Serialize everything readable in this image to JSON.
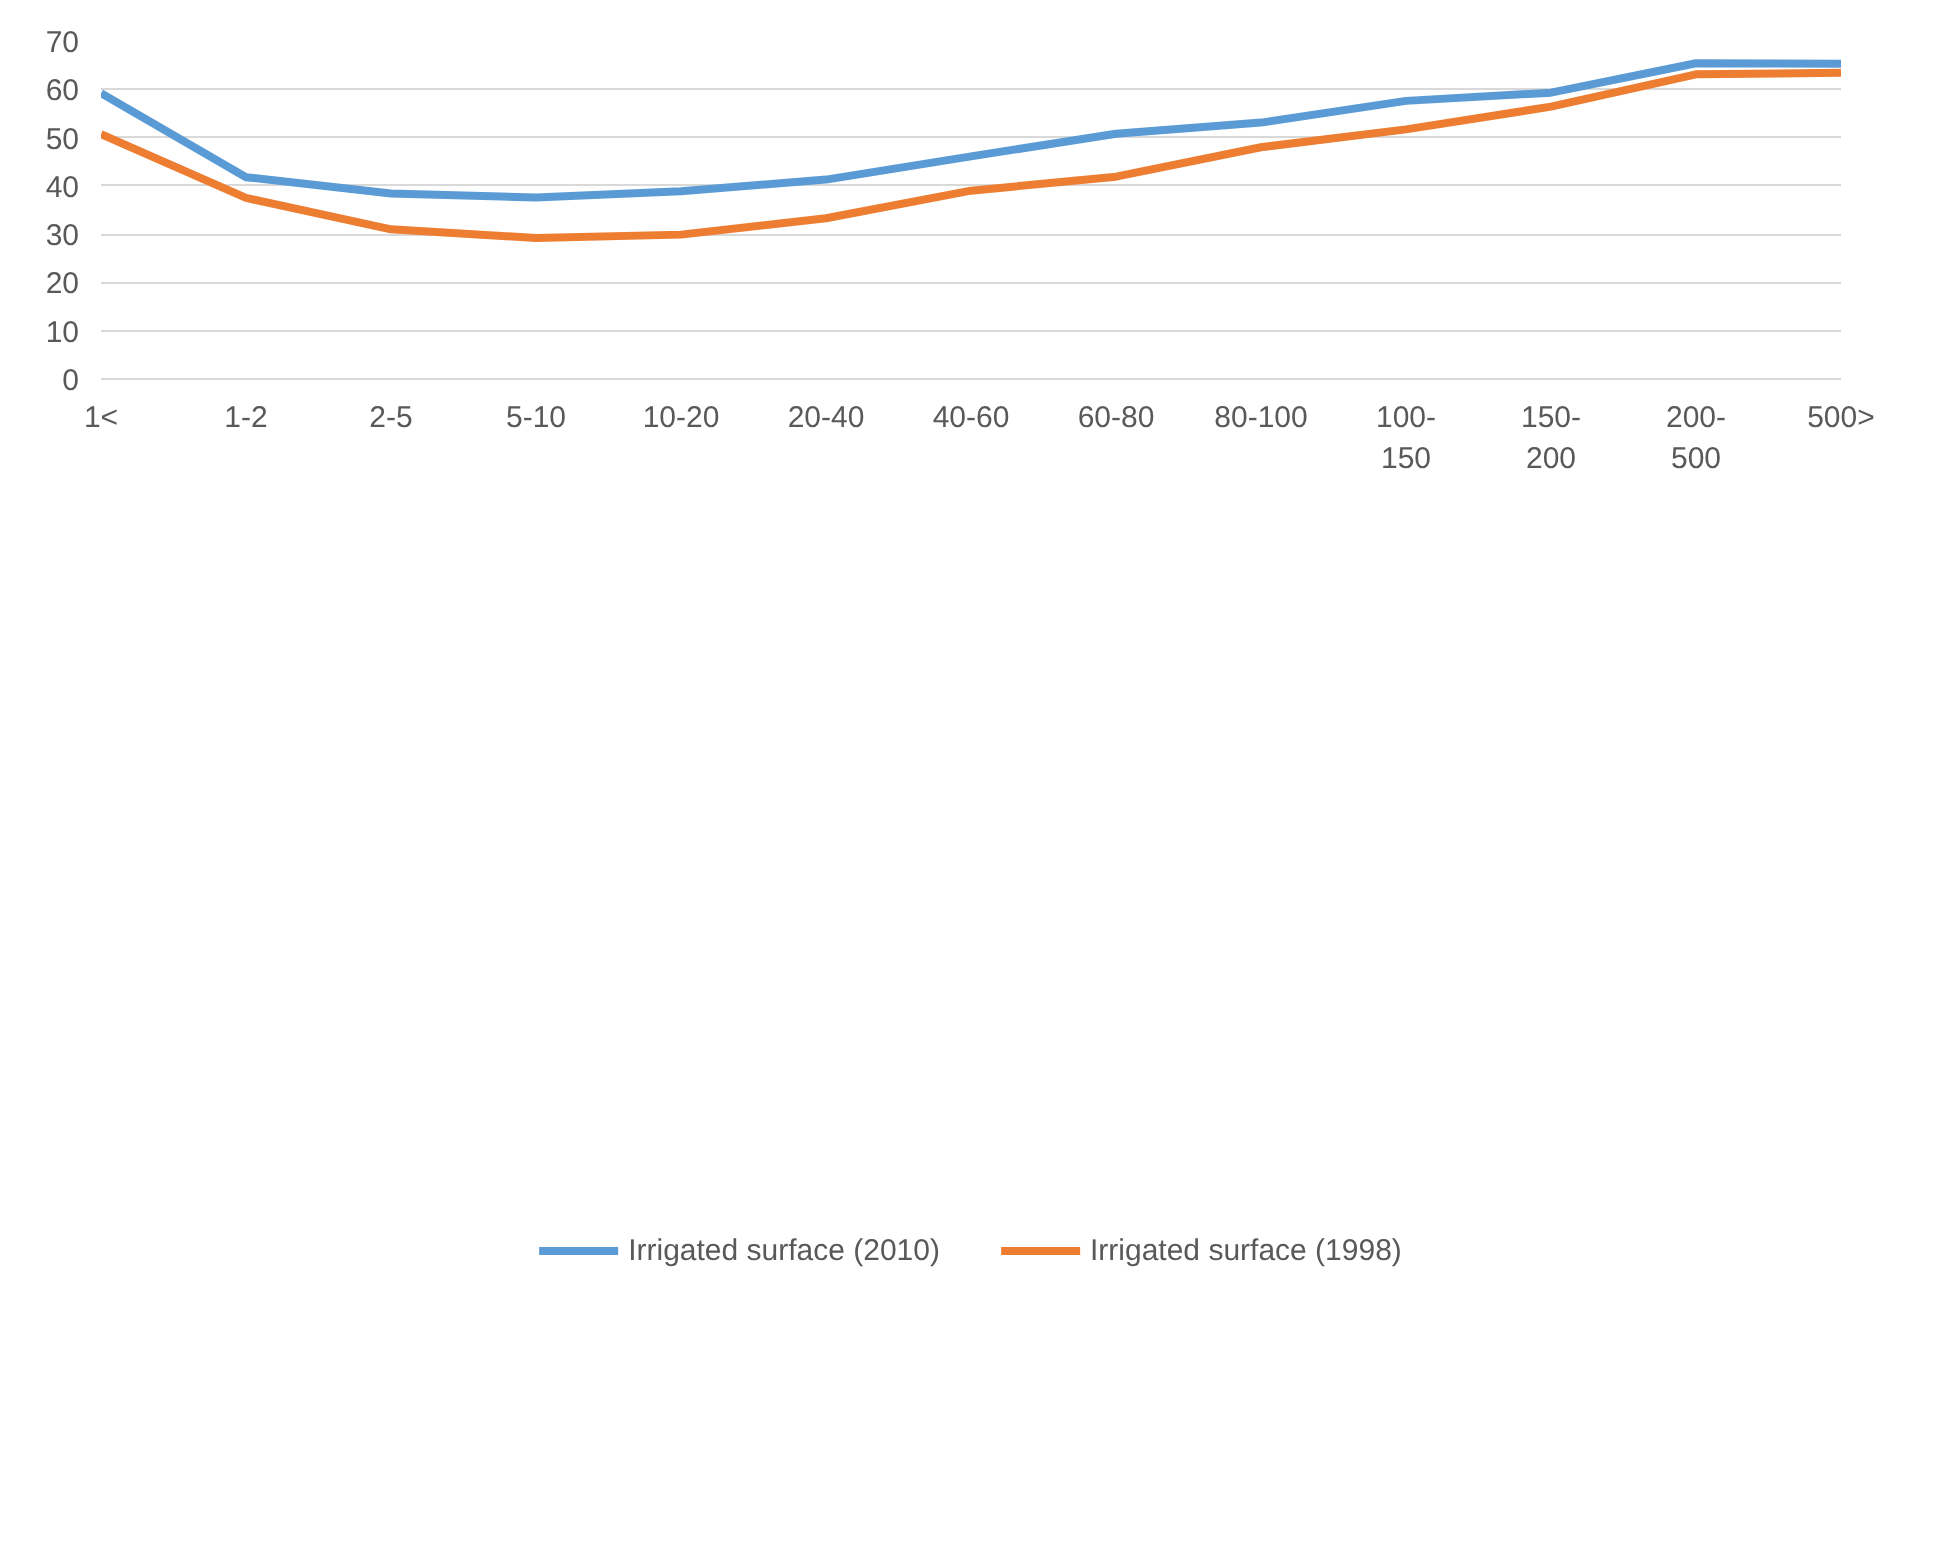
{
  "chart_data": {
    "type": "line",
    "categories": [
      "1<",
      "1-2",
      "2-5",
      "5-10",
      "10-20",
      "20-40",
      "40-60",
      "60-80",
      "80-100",
      "100-150",
      "150-200",
      "200-500",
      "500>"
    ],
    "series": [
      {
        "name": "Irrigated surface (2010)",
        "color": "#5b9bd5",
        "values": [
          59.2,
          41.8,
          38.4,
          37.6,
          38.9,
          41.3,
          46.1,
          50.8,
          53.1,
          57.6,
          59.3,
          65.4,
          65.3
        ]
      },
      {
        "name": "Irrigated surface (1998)",
        "color": "#ed7d31",
        "values": [
          50.7,
          37.5,
          31.0,
          29.2,
          29.9,
          33.3,
          39.0,
          41.9,
          48.0,
          51.7,
          56.4,
          63.1,
          63.4
        ]
      }
    ],
    "ylim": [
      0,
      70
    ],
    "yticks": [
      0,
      10,
      20,
      30,
      40,
      50,
      60,
      70
    ],
    "grid": "y",
    "legend": "bottom",
    "marker": "none",
    "line_style": "solid"
  }
}
